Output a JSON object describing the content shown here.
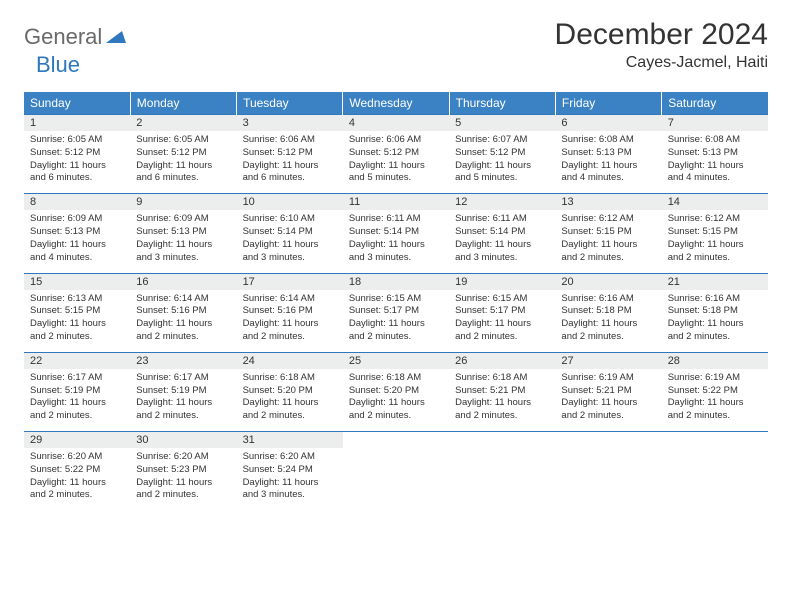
{
  "brand": {
    "general": "General",
    "blue": "Blue"
  },
  "title": "December 2024",
  "location": "Cayes-Jacmel, Haiti",
  "colors": {
    "header_bg": "#3b82c4",
    "header_fg": "#ffffff",
    "daynum_bg": "#eceded",
    "border": "#2f78bd",
    "logo_gray": "#6a6a6a",
    "logo_blue": "#2f78bd",
    "text": "#333333",
    "page_bg": "#ffffff"
  },
  "fonts": {
    "title_size": 30,
    "location_size": 16,
    "weekday_size": 12,
    "daynum_size": 11,
    "cell_size": 9.5
  },
  "weekdays": [
    "Sunday",
    "Monday",
    "Tuesday",
    "Wednesday",
    "Thursday",
    "Friday",
    "Saturday"
  ],
  "weeks": [
    [
      {
        "day": "1",
        "sunrise": "Sunrise: 6:05 AM",
        "sunset": "Sunset: 5:12 PM",
        "daylight": "Daylight: 11 hours and 6 minutes."
      },
      {
        "day": "2",
        "sunrise": "Sunrise: 6:05 AM",
        "sunset": "Sunset: 5:12 PM",
        "daylight": "Daylight: 11 hours and 6 minutes."
      },
      {
        "day": "3",
        "sunrise": "Sunrise: 6:06 AM",
        "sunset": "Sunset: 5:12 PM",
        "daylight": "Daylight: 11 hours and 6 minutes."
      },
      {
        "day": "4",
        "sunrise": "Sunrise: 6:06 AM",
        "sunset": "Sunset: 5:12 PM",
        "daylight": "Daylight: 11 hours and 5 minutes."
      },
      {
        "day": "5",
        "sunrise": "Sunrise: 6:07 AM",
        "sunset": "Sunset: 5:12 PM",
        "daylight": "Daylight: 11 hours and 5 minutes."
      },
      {
        "day": "6",
        "sunrise": "Sunrise: 6:08 AM",
        "sunset": "Sunset: 5:13 PM",
        "daylight": "Daylight: 11 hours and 4 minutes."
      },
      {
        "day": "7",
        "sunrise": "Sunrise: 6:08 AM",
        "sunset": "Sunset: 5:13 PM",
        "daylight": "Daylight: 11 hours and 4 minutes."
      }
    ],
    [
      {
        "day": "8",
        "sunrise": "Sunrise: 6:09 AM",
        "sunset": "Sunset: 5:13 PM",
        "daylight": "Daylight: 11 hours and 4 minutes."
      },
      {
        "day": "9",
        "sunrise": "Sunrise: 6:09 AM",
        "sunset": "Sunset: 5:13 PM",
        "daylight": "Daylight: 11 hours and 3 minutes."
      },
      {
        "day": "10",
        "sunrise": "Sunrise: 6:10 AM",
        "sunset": "Sunset: 5:14 PM",
        "daylight": "Daylight: 11 hours and 3 minutes."
      },
      {
        "day": "11",
        "sunrise": "Sunrise: 6:11 AM",
        "sunset": "Sunset: 5:14 PM",
        "daylight": "Daylight: 11 hours and 3 minutes."
      },
      {
        "day": "12",
        "sunrise": "Sunrise: 6:11 AM",
        "sunset": "Sunset: 5:14 PM",
        "daylight": "Daylight: 11 hours and 3 minutes."
      },
      {
        "day": "13",
        "sunrise": "Sunrise: 6:12 AM",
        "sunset": "Sunset: 5:15 PM",
        "daylight": "Daylight: 11 hours and 2 minutes."
      },
      {
        "day": "14",
        "sunrise": "Sunrise: 6:12 AM",
        "sunset": "Sunset: 5:15 PM",
        "daylight": "Daylight: 11 hours and 2 minutes."
      }
    ],
    [
      {
        "day": "15",
        "sunrise": "Sunrise: 6:13 AM",
        "sunset": "Sunset: 5:15 PM",
        "daylight": "Daylight: 11 hours and 2 minutes."
      },
      {
        "day": "16",
        "sunrise": "Sunrise: 6:14 AM",
        "sunset": "Sunset: 5:16 PM",
        "daylight": "Daylight: 11 hours and 2 minutes."
      },
      {
        "day": "17",
        "sunrise": "Sunrise: 6:14 AM",
        "sunset": "Sunset: 5:16 PM",
        "daylight": "Daylight: 11 hours and 2 minutes."
      },
      {
        "day": "18",
        "sunrise": "Sunrise: 6:15 AM",
        "sunset": "Sunset: 5:17 PM",
        "daylight": "Daylight: 11 hours and 2 minutes."
      },
      {
        "day": "19",
        "sunrise": "Sunrise: 6:15 AM",
        "sunset": "Sunset: 5:17 PM",
        "daylight": "Daylight: 11 hours and 2 minutes."
      },
      {
        "day": "20",
        "sunrise": "Sunrise: 6:16 AM",
        "sunset": "Sunset: 5:18 PM",
        "daylight": "Daylight: 11 hours and 2 minutes."
      },
      {
        "day": "21",
        "sunrise": "Sunrise: 6:16 AM",
        "sunset": "Sunset: 5:18 PM",
        "daylight": "Daylight: 11 hours and 2 minutes."
      }
    ],
    [
      {
        "day": "22",
        "sunrise": "Sunrise: 6:17 AM",
        "sunset": "Sunset: 5:19 PM",
        "daylight": "Daylight: 11 hours and 2 minutes."
      },
      {
        "day": "23",
        "sunrise": "Sunrise: 6:17 AM",
        "sunset": "Sunset: 5:19 PM",
        "daylight": "Daylight: 11 hours and 2 minutes."
      },
      {
        "day": "24",
        "sunrise": "Sunrise: 6:18 AM",
        "sunset": "Sunset: 5:20 PM",
        "daylight": "Daylight: 11 hours and 2 minutes."
      },
      {
        "day": "25",
        "sunrise": "Sunrise: 6:18 AM",
        "sunset": "Sunset: 5:20 PM",
        "daylight": "Daylight: 11 hours and 2 minutes."
      },
      {
        "day": "26",
        "sunrise": "Sunrise: 6:18 AM",
        "sunset": "Sunset: 5:21 PM",
        "daylight": "Daylight: 11 hours and 2 minutes."
      },
      {
        "day": "27",
        "sunrise": "Sunrise: 6:19 AM",
        "sunset": "Sunset: 5:21 PM",
        "daylight": "Daylight: 11 hours and 2 minutes."
      },
      {
        "day": "28",
        "sunrise": "Sunrise: 6:19 AM",
        "sunset": "Sunset: 5:22 PM",
        "daylight": "Daylight: 11 hours and 2 minutes."
      }
    ],
    [
      {
        "day": "29",
        "sunrise": "Sunrise: 6:20 AM",
        "sunset": "Sunset: 5:22 PM",
        "daylight": "Daylight: 11 hours and 2 minutes."
      },
      {
        "day": "30",
        "sunrise": "Sunrise: 6:20 AM",
        "sunset": "Sunset: 5:23 PM",
        "daylight": "Daylight: 11 hours and 2 minutes."
      },
      {
        "day": "31",
        "sunrise": "Sunrise: 6:20 AM",
        "sunset": "Sunset: 5:24 PM",
        "daylight": "Daylight: 11 hours and 3 minutes."
      },
      null,
      null,
      null,
      null
    ]
  ]
}
